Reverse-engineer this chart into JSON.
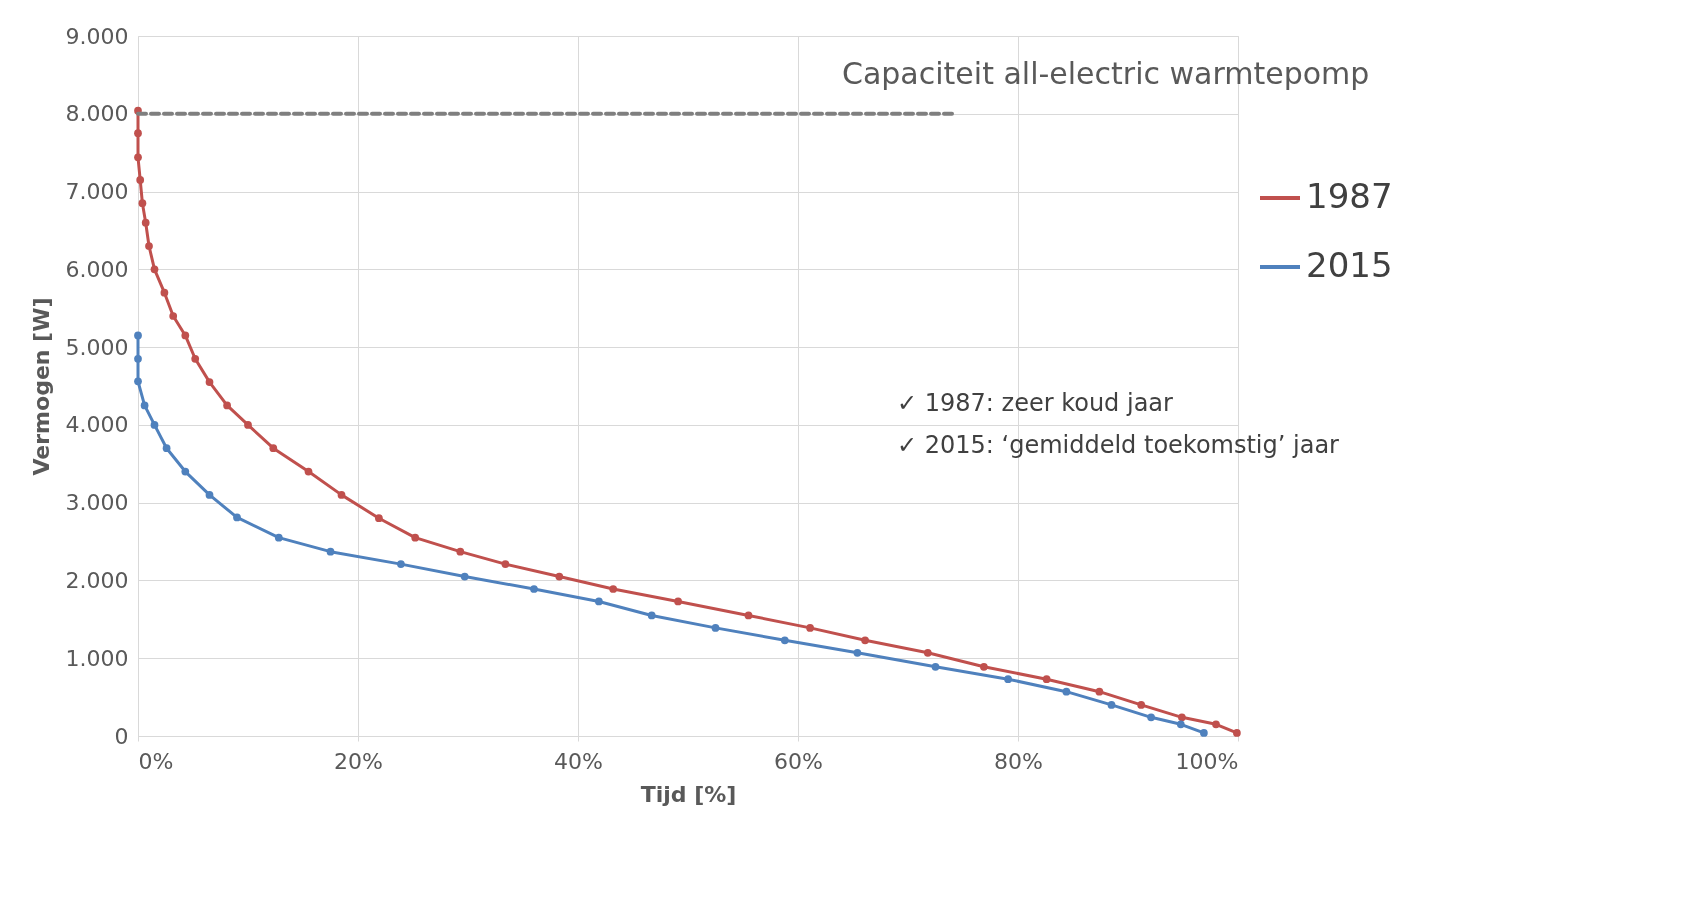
{
  "chart_data": {
    "type": "line",
    "xlabel": "Tijd [%]",
    "ylabel": "Vermogen [W]",
    "xlim": [
      0,
      100
    ],
    "ylim": [
      0,
      9000
    ],
    "xticks": [
      {
        "value": 0,
        "label": "0%"
      },
      {
        "value": 20,
        "label": "20%"
      },
      {
        "value": 40,
        "label": "40%"
      },
      {
        "value": 60,
        "label": "60%"
      },
      {
        "value": 80,
        "label": "80%"
      },
      {
        "value": 100,
        "label": "100%"
      }
    ],
    "yticks": [
      0,
      {
        "value": 1000,
        "label": "1.000"
      },
      {
        "value": 2000,
        "label": "2.000"
      },
      {
        "value": 3000,
        "label": "3.000"
      },
      {
        "value": 4000,
        "label": "4.000"
      },
      {
        "value": 5000,
        "label": "5.000"
      },
      {
        "value": 6000,
        "label": "6.000"
      },
      {
        "value": 7000,
        "label": "7.000"
      },
      {
        "value": 8000,
        "label": "8.000"
      },
      {
        "value": 9000,
        "label": "9.000"
      }
    ],
    "grid": true,
    "legend": "right",
    "marker": "circle",
    "line_style": "solid",
    "series": [
      {
        "name": "1987",
        "color": "#c0504d",
        "x": [
          0,
          0,
          0,
          0.2,
          0.4,
          0.7,
          1.0,
          1.5,
          2.4,
          3.2,
          4.3,
          5.2,
          6.5,
          8.1,
          10.0,
          12.3,
          15.5,
          18.5,
          21.9,
          25.2,
          29.3,
          33.4,
          38.3,
          43.2,
          49.1,
          55.5,
          61.1,
          66.1,
          71.8,
          76.9,
          82.6,
          87.4,
          91.2,
          94.9,
          98.0,
          99.9
        ],
        "values": [
          8040,
          7750,
          7440,
          7150,
          6850,
          6600,
          6300,
          6000,
          5700,
          5400,
          5150,
          4850,
          4550,
          4250,
          4000,
          3700,
          3400,
          3100,
          2800,
          2550,
          2370,
          2210,
          2050,
          1890,
          1730,
          1550,
          1390,
          1230,
          1070,
          890,
          730,
          570,
          400,
          240,
          150,
          40
        ]
      },
      {
        "name": "2015",
        "color": "#4f81bd",
        "x": [
          0,
          0,
          0,
          0.6,
          1.5,
          2.6,
          4.3,
          6.5,
          9.0,
          12.8,
          17.5,
          23.9,
          29.7,
          36.0,
          41.9,
          46.7,
          52.5,
          58.8,
          65.4,
          72.5,
          79.1,
          84.4,
          88.5,
          92.1,
          94.8,
          96.9
        ],
        "values": [
          5150,
          4850,
          4560,
          4250,
          4000,
          3700,
          3400,
          3100,
          2810,
          2550,
          2370,
          2210,
          2050,
          1890,
          1730,
          1550,
          1390,
          1230,
          1070,
          890,
          730,
          570,
          400,
          240,
          150,
          40
        ]
      },
      {
        "type": "line",
        "color": "#7f7f7f",
        "line_style": "dashed",
        "marker": "none",
        "x": [
          0,
          74
        ],
        "values": [
          8000,
          8000
        ]
      }
    ],
    "annotations": [
      "Capaciteit all-electric warmtepomp",
      "✓  1987: zeer koud jaar",
      "✓  2015: ‘gemiddeld toekomstig’ jaar"
    ]
  }
}
